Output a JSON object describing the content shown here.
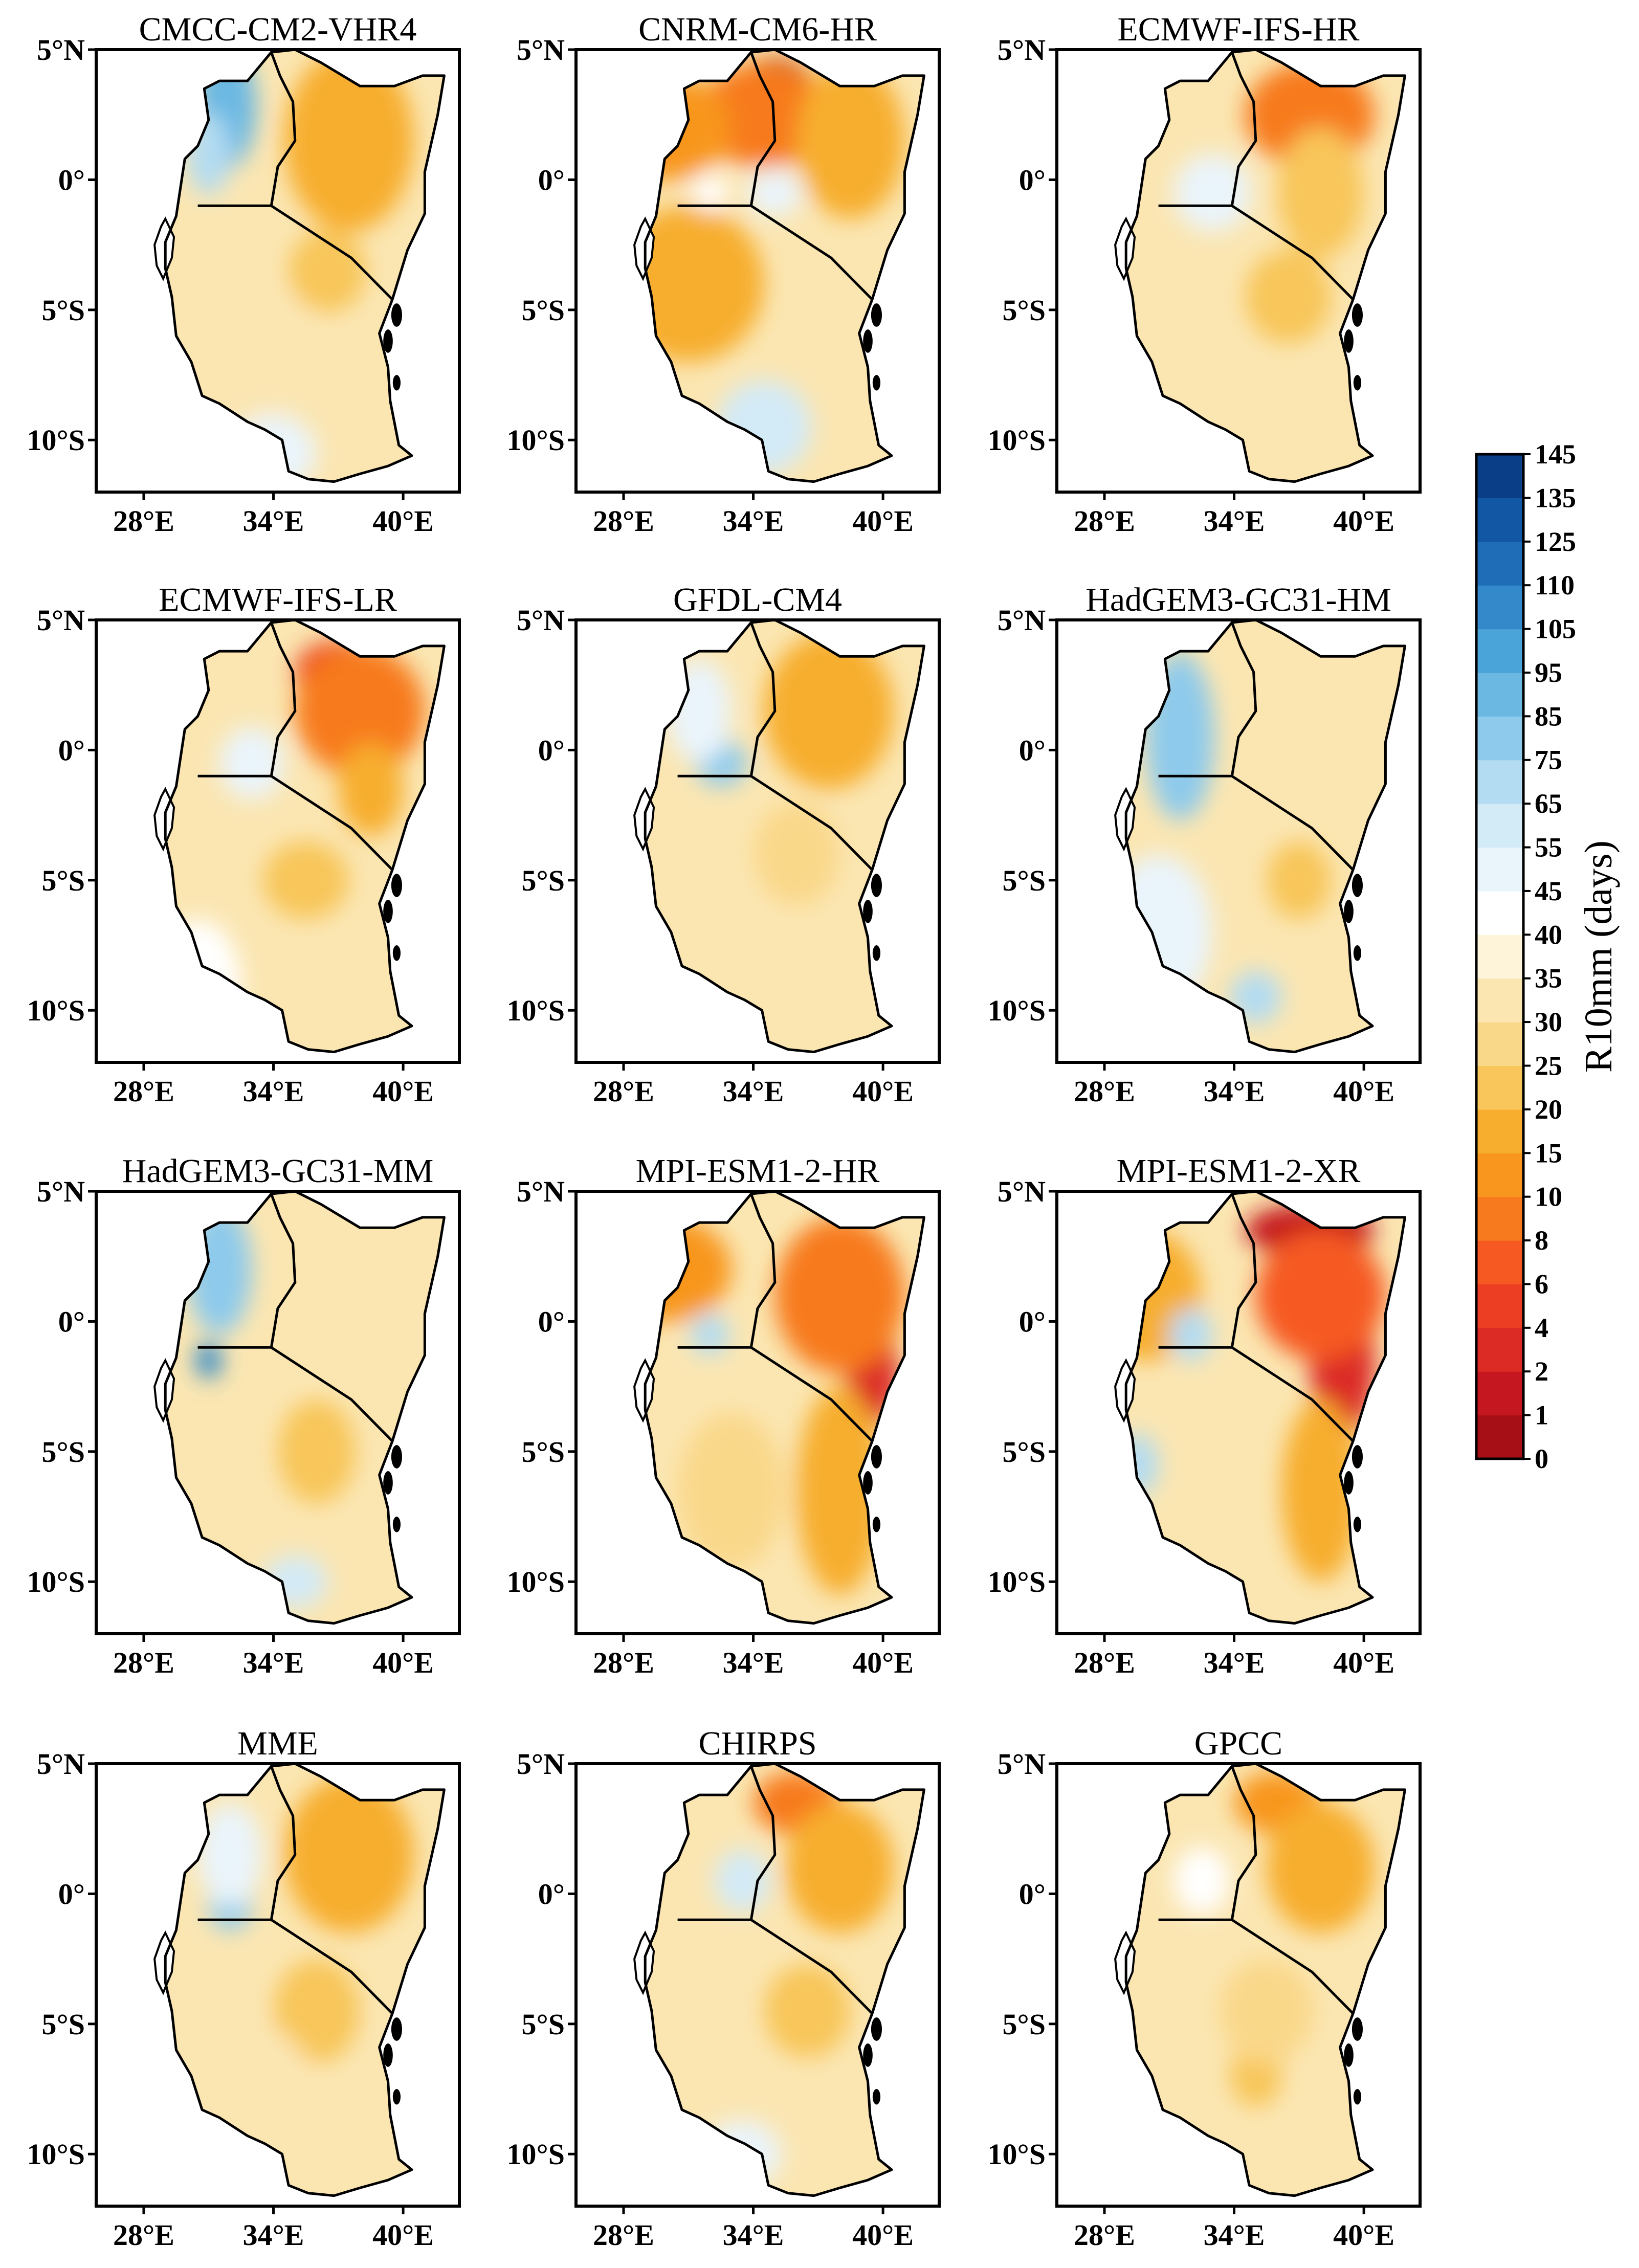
{
  "figure": {
    "colorbar": {
      "title": "R10mm (days)",
      "levels": [
        "0",
        "1",
        "2",
        "4",
        "6",
        "8",
        "10",
        "15",
        "20",
        "25",
        "30",
        "35",
        "40",
        "45",
        "55",
        "65",
        "75",
        "85",
        "95",
        "105",
        "110",
        "125",
        "135",
        "145"
      ],
      "colors": [
        "#a50f15",
        "#c4171f",
        "#dc2a25",
        "#ec3e23",
        "#f65a22",
        "#f77a1f",
        "#f8961e",
        "#f7ae2e",
        "#f8c65a",
        "#fad88a",
        "#fbe6b2",
        "#fdf4da",
        "#ffffff",
        "#eaf4fb",
        "#d3eaf7",
        "#b3dcf2",
        "#8ecaec",
        "#6bb8e3",
        "#4aa3d9",
        "#3389c9",
        "#1f6db7",
        "#1257a3",
        "#0a3e86"
      ]
    },
    "panels": [
      {
        "title": "CMCC-CM2-VHR4",
        "blobs": [
          {
            "lon": 31.8,
            "lat": 2.8,
            "rx": 1.4,
            "ry": 2.4,
            "level": 17
          },
          {
            "lon": 31.0,
            "lat": 1.0,
            "rx": 1.0,
            "ry": 1.6,
            "level": 15
          },
          {
            "lon": 37.5,
            "lat": 1.5,
            "rx": 3.0,
            "ry": 3.5,
            "level": 7
          },
          {
            "lon": 36.5,
            "lat": -3.5,
            "rx": 1.8,
            "ry": 1.6,
            "level": 8
          },
          {
            "lon": 33.0,
            "lat": -6.5,
            "rx": 3.0,
            "ry": 2.5,
            "level": 10
          },
          {
            "lon": 34.0,
            "lat": -10.5,
            "rx": 2.0,
            "ry": 1.5,
            "level": 13
          }
        ]
      },
      {
        "title": "CNRM-CM6-HR",
        "blobs": [
          {
            "lon": 35.0,
            "lat": 3.5,
            "rx": 1.8,
            "ry": 1.2,
            "level": 0
          },
          {
            "lon": 34.5,
            "lat": 2.5,
            "rx": 3.0,
            "ry": 2.0,
            "level": 5
          },
          {
            "lon": 30.0,
            "lat": 2.0,
            "rx": 3.0,
            "ry": 2.0,
            "level": 6
          },
          {
            "lon": 38.5,
            "lat": 1.5,
            "rx": 2.5,
            "ry": 3.0,
            "level": 7
          },
          {
            "lon": 31.0,
            "lat": -4.0,
            "rx": 3.5,
            "ry": 3.0,
            "level": 7
          },
          {
            "lon": 32.0,
            "lat": -0.5,
            "rx": 0.8,
            "ry": 0.7,
            "level": 12
          },
          {
            "lon": 35.0,
            "lat": -0.5,
            "rx": 1.3,
            "ry": 0.9,
            "level": 13
          },
          {
            "lon": 34.5,
            "lat": -9.5,
            "rx": 2.2,
            "ry": 1.8,
            "level": 14
          }
        ]
      },
      {
        "title": "ECMWF-IFS-HR",
        "blobs": [
          {
            "lon": 37.5,
            "lat": 2.5,
            "rx": 3.0,
            "ry": 2.0,
            "level": 5
          },
          {
            "lon": 38.0,
            "lat": -0.5,
            "rx": 2.0,
            "ry": 2.5,
            "level": 8
          },
          {
            "lon": 36.5,
            "lat": -4.5,
            "rx": 2.0,
            "ry": 1.8,
            "level": 8
          },
          {
            "lon": 33.0,
            "lat": -0.5,
            "rx": 1.8,
            "ry": 1.5,
            "level": 13
          },
          {
            "lon": 33.0,
            "lat": -9.5,
            "rx": 2.0,
            "ry": 1.5,
            "level": 10
          }
        ]
      },
      {
        "title": "ECMWF-IFS-LR",
        "blobs": [
          {
            "lon": 37.0,
            "lat": 3.0,
            "rx": 2.0,
            "ry": 1.2,
            "level": 3
          },
          {
            "lon": 38.0,
            "lat": 1.5,
            "rx": 3.0,
            "ry": 2.5,
            "level": 5
          },
          {
            "lon": 38.5,
            "lat": -1.5,
            "rx": 1.5,
            "ry": 1.8,
            "level": 7
          },
          {
            "lon": 35.5,
            "lat": -5.0,
            "rx": 2.0,
            "ry": 1.5,
            "level": 8
          },
          {
            "lon": 33.0,
            "lat": -0.5,
            "rx": 1.5,
            "ry": 1.4,
            "level": 13
          },
          {
            "lon": 30.5,
            "lat": -9.0,
            "rx": 2.0,
            "ry": 2.5,
            "level": 12
          }
        ]
      },
      {
        "title": "GFDL-CM4",
        "blobs": [
          {
            "lon": 37.5,
            "lat": 1.5,
            "rx": 3.0,
            "ry": 3.0,
            "level": 7
          },
          {
            "lon": 32.5,
            "lat": -0.5,
            "rx": 1.2,
            "ry": 0.9,
            "level": 16
          },
          {
            "lon": 31.5,
            "lat": 1.5,
            "rx": 1.5,
            "ry": 2.0,
            "level": 13
          },
          {
            "lon": 36.0,
            "lat": -4.0,
            "rx": 2.0,
            "ry": 2.0,
            "level": 9
          },
          {
            "lon": 33.0,
            "lat": -8.0,
            "rx": 3.0,
            "ry": 3.0,
            "level": 10
          }
        ]
      },
      {
        "title": "HadGEM3-GC31-HM",
        "blobs": [
          {
            "lon": 31.5,
            "lat": 1.0,
            "rx": 0.9,
            "ry": 2.8,
            "level": 19
          },
          {
            "lon": 31.5,
            "lat": 0.5,
            "rx": 1.6,
            "ry": 3.2,
            "level": 16
          },
          {
            "lon": 37.0,
            "lat": -5.0,
            "rx": 1.5,
            "ry": 1.5,
            "level": 8
          },
          {
            "lon": 37.0,
            "lat": 2.0,
            "rx": 2.5,
            "ry": 2.5,
            "level": 10
          },
          {
            "lon": 35.0,
            "lat": -9.5,
            "rx": 1.2,
            "ry": 1.0,
            "level": 15
          },
          {
            "lon": 30.5,
            "lat": -7.0,
            "rx": 2.5,
            "ry": 3.0,
            "level": 13
          }
        ]
      },
      {
        "title": "HadGEM3-GC31-MM",
        "blobs": [
          {
            "lon": 31.5,
            "lat": 2.0,
            "rx": 1.5,
            "ry": 2.5,
            "level": 16
          },
          {
            "lon": 31.0,
            "lat": -1.5,
            "rx": 0.6,
            "ry": 0.7,
            "level": 19
          },
          {
            "lon": 36.0,
            "lat": -5.0,
            "rx": 1.8,
            "ry": 2.0,
            "level": 8
          },
          {
            "lon": 37.5,
            "lat": 1.0,
            "rx": 2.5,
            "ry": 2.5,
            "level": 10
          },
          {
            "lon": 35.0,
            "lat": -10.0,
            "rx": 1.5,
            "ry": 1.0,
            "level": 14
          }
        ]
      },
      {
        "title": "MPI-ESM1-2-HR",
        "blobs": [
          {
            "lon": 39.5,
            "lat": -2.0,
            "rx": 1.2,
            "ry": 2.0,
            "level": 2
          },
          {
            "lon": 38.0,
            "lat": 1.0,
            "rx": 3.0,
            "ry": 3.0,
            "level": 5
          },
          {
            "lon": 30.0,
            "lat": 2.0,
            "rx": 3.0,
            "ry": 2.0,
            "level": 6
          },
          {
            "lon": 38.0,
            "lat": -6.5,
            "rx": 2.0,
            "ry": 4.0,
            "level": 7
          },
          {
            "lon": 32.0,
            "lat": -0.5,
            "rx": 0.9,
            "ry": 0.8,
            "level": 15
          },
          {
            "lon": 33.0,
            "lat": -6.5,
            "rx": 2.5,
            "ry": 3.0,
            "level": 9
          }
        ]
      },
      {
        "title": "MPI-ESM1-2-XR",
        "blobs": [
          {
            "lon": 37.5,
            "lat": 3.5,
            "rx": 3.0,
            "ry": 1.0,
            "level": 1
          },
          {
            "lon": 39.0,
            "lat": -1.5,
            "rx": 1.5,
            "ry": 3.0,
            "level": 2
          },
          {
            "lon": 38.0,
            "lat": 1.0,
            "rx": 3.0,
            "ry": 2.5,
            "level": 4
          },
          {
            "lon": 30.0,
            "lat": 1.0,
            "rx": 2.5,
            "ry": 2.5,
            "level": 7
          },
          {
            "lon": 38.0,
            "lat": -6.5,
            "rx": 1.8,
            "ry": 3.5,
            "level": 7
          },
          {
            "lon": 32.0,
            "lat": -0.5,
            "rx": 1.0,
            "ry": 1.0,
            "level": 15
          },
          {
            "lon": 29.5,
            "lat": -5.5,
            "rx": 1.0,
            "ry": 1.2,
            "level": 15
          }
        ]
      },
      {
        "title": "MME",
        "blobs": [
          {
            "lon": 37.5,
            "lat": 1.5,
            "rx": 3.0,
            "ry": 3.0,
            "level": 7
          },
          {
            "lon": 32.0,
            "lat": -0.5,
            "rx": 1.0,
            "ry": 0.9,
            "level": 16
          },
          {
            "lon": 32.0,
            "lat": 1.5,
            "rx": 1.5,
            "ry": 2.0,
            "level": 13
          },
          {
            "lon": 36.0,
            "lat": -4.5,
            "rx": 2.0,
            "ry": 2.0,
            "level": 8
          },
          {
            "lon": 33.0,
            "lat": -8.0,
            "rx": 3.0,
            "ry": 3.0,
            "level": 10
          }
        ]
      },
      {
        "title": "CHIRPS",
        "blobs": [
          {
            "lon": 36.0,
            "lat": 3.5,
            "rx": 2.0,
            "ry": 1.2,
            "level": 5
          },
          {
            "lon": 38.0,
            "lat": 1.0,
            "rx": 2.5,
            "ry": 2.5,
            "level": 7
          },
          {
            "lon": 33.5,
            "lat": 0.5,
            "rx": 1.3,
            "ry": 1.2,
            "level": 14
          },
          {
            "lon": 36.5,
            "lat": -4.5,
            "rx": 2.0,
            "ry": 1.8,
            "level": 8
          },
          {
            "lon": 33.5,
            "lat": -10.0,
            "rx": 1.8,
            "ry": 1.3,
            "level": 13
          }
        ]
      },
      {
        "title": "GPCC",
        "blobs": [
          {
            "lon": 36.0,
            "lat": 3.5,
            "rx": 2.0,
            "ry": 1.2,
            "level": 6
          },
          {
            "lon": 38.0,
            "lat": 1.0,
            "rx": 2.5,
            "ry": 2.5,
            "level": 7
          },
          {
            "lon": 35.0,
            "lat": -7.0,
            "rx": 1.2,
            "ry": 1.2,
            "level": 8
          },
          {
            "lon": 35.5,
            "lat": -4.5,
            "rx": 2.2,
            "ry": 2.0,
            "level": 9
          },
          {
            "lon": 32.5,
            "lat": 0.5,
            "rx": 1.3,
            "ry": 1.3,
            "level": 12
          }
        ]
      }
    ]
  },
  "chart_data": {
    "type": "heatmap",
    "title": "",
    "panel_titles": [
      "CMCC-CM2-VHR4",
      "CNRM-CM6-HR",
      "ECMWF-IFS-HR",
      "ECMWF-IFS-LR",
      "GFDL-CM4",
      "HadGEM3-GC31-HM",
      "HadGEM3-GC31-MM",
      "MPI-ESM1-2-HR",
      "MPI-ESM1-2-XR",
      "MME",
      "CHIRPS",
      "GPCC"
    ],
    "xlabel": "",
    "ylabel": "",
    "x_ticks": [
      {
        "value": 28,
        "label": "28°E"
      },
      {
        "value": 34,
        "label": "34°E"
      },
      {
        "value": 40,
        "label": "40°E"
      }
    ],
    "y_ticks": [
      {
        "value": 5,
        "label": "5°N"
      },
      {
        "value": 0,
        "label": "0°"
      },
      {
        "value": -5,
        "label": "5°S"
      },
      {
        "value": -10,
        "label": "10°S"
      }
    ],
    "xlim": [
      25.8,
      42.6
    ],
    "ylim": [
      -12,
      5
    ],
    "colorbar_label": "R10mm (days)",
    "colorbar_levels": [
      0,
      1,
      2,
      4,
      6,
      8,
      10,
      15,
      20,
      25,
      30,
      35,
      40,
      45,
      55,
      65,
      75,
      85,
      95,
      105,
      110,
      125,
      135,
      145
    ],
    "layout": "4 rows x 3 columns"
  }
}
